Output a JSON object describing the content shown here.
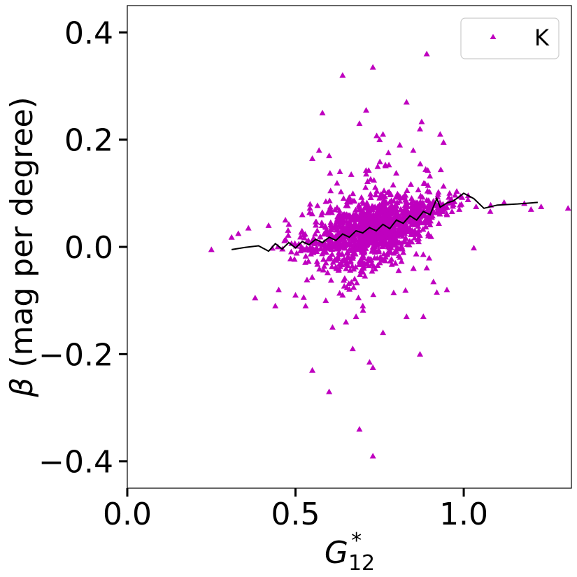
{
  "chart_data": {
    "type": "scatter",
    "xlabel": "G",
    "xlabel_sub": "12",
    "xlabel_sup": "*",
    "ylabel_symbol": "β",
    "ylabel": " (mag per degree)",
    "xlim": [
      0.0,
      1.32
    ],
    "ylim": [
      -0.45,
      0.45
    ],
    "x_ticks": [
      0.0,
      0.5,
      1.0
    ],
    "x_tick_labels": [
      "0.0",
      "0.5",
      "1.0"
    ],
    "y_ticks": [
      -0.4,
      -0.2,
      0.0,
      0.2,
      0.4
    ],
    "y_tick_labels": [
      "−0.4",
      "−0.2",
      "0.0",
      "0.2",
      "0.4"
    ],
    "grid": false,
    "legend": {
      "placement": "top-right",
      "entries": [
        {
          "label": "K",
          "marker": "triangle",
          "color": "#bf00bf"
        }
      ]
    },
    "series": [
      {
        "name": "K",
        "kind": "scatter",
        "marker": "triangle",
        "color": "#bf00bf",
        "generated_count": 1500,
        "points": [
          [
            0.25,
            -0.005
          ],
          [
            0.89,
            0.36
          ],
          [
            0.64,
            0.32
          ],
          [
            0.73,
            0.335
          ],
          [
            0.71,
            0.255
          ],
          [
            0.83,
            0.27
          ],
          [
            0.58,
            0.25
          ],
          [
            0.69,
            0.23
          ],
          [
            0.76,
            0.21
          ],
          [
            0.87,
            0.22
          ],
          [
            0.55,
            0.165
          ],
          [
            0.57,
            0.18
          ],
          [
            0.6,
            0.17
          ],
          [
            0.94,
            0.195
          ],
          [
            0.93,
            0.21
          ],
          [
            0.75,
            0.2
          ],
          [
            0.81,
            0.19
          ],
          [
            0.85,
            0.18
          ],
          [
            1.23,
            0.075
          ],
          [
            1.31,
            0.072
          ],
          [
            1.18,
            0.081
          ],
          [
            1.12,
            0.083
          ],
          [
            1.08,
            0.078
          ],
          [
            1.2,
            0.07
          ],
          [
            1.03,
            -0.002
          ],
          [
            0.95,
            -0.08
          ],
          [
            0.91,
            -0.065
          ],
          [
            0.92,
            -0.085
          ],
          [
            0.87,
            -0.2
          ],
          [
            0.83,
            -0.13
          ],
          [
            0.88,
            -0.13
          ],
          [
            0.67,
            -0.19
          ],
          [
            0.72,
            -0.215
          ],
          [
            0.73,
            -0.225
          ],
          [
            0.55,
            -0.23
          ],
          [
            0.6,
            -0.27
          ],
          [
            0.69,
            -0.34
          ],
          [
            0.73,
            -0.39
          ],
          [
            0.76,
            -0.16
          ],
          [
            0.68,
            -0.13
          ],
          [
            0.7,
            -0.11
          ],
          [
            0.64,
            -0.09
          ],
          [
            0.59,
            -0.1
          ],
          [
            0.53,
            -0.11
          ],
          [
            0.61,
            -0.15
          ],
          [
            0.65,
            -0.14
          ],
          [
            0.44,
            -0.11
          ],
          [
            0.38,
            -0.095
          ],
          [
            0.45,
            -0.08
          ],
          [
            0.5,
            -0.09
          ],
          [
            0.42,
            0.04
          ],
          [
            0.36,
            0.035
          ],
          [
            0.33,
            0.025
          ],
          [
            0.31,
            0.018
          ],
          [
            0.47,
            0.05
          ],
          [
            0.48,
            0.042
          ],
          [
            0.52,
            0.06
          ]
        ]
      },
      {
        "name": "",
        "kind": "line",
        "color": "#000000",
        "points": [
          [
            0.31,
            -0.005
          ],
          [
            0.35,
            -0.001
          ],
          [
            0.39,
            0.002
          ],
          [
            0.42,
            -0.008
          ],
          [
            0.44,
            0.006
          ],
          [
            0.46,
            -0.004
          ],
          [
            0.48,
            0.008
          ],
          [
            0.5,
            -0.002
          ],
          [
            0.52,
            0.01
          ],
          [
            0.54,
            0.004
          ],
          [
            0.56,
            0.014
          ],
          [
            0.58,
            0.008
          ],
          [
            0.6,
            0.018
          ],
          [
            0.62,
            0.012
          ],
          [
            0.64,
            0.024
          ],
          [
            0.66,
            0.018
          ],
          [
            0.68,
            0.03
          ],
          [
            0.7,
            0.026
          ],
          [
            0.72,
            0.036
          ],
          [
            0.74,
            0.03
          ],
          [
            0.76,
            0.042
          ],
          [
            0.78,
            0.034
          ],
          [
            0.8,
            0.05
          ],
          [
            0.82,
            0.044
          ],
          [
            0.84,
            0.058
          ],
          [
            0.86,
            0.05
          ],
          [
            0.88,
            0.066
          ],
          [
            0.9,
            0.06
          ],
          [
            0.92,
            0.09
          ],
          [
            0.93,
            0.074
          ],
          [
            0.95,
            0.082
          ],
          [
            0.97,
            0.086
          ],
          [
            1.0,
            0.1
          ],
          [
            1.03,
            0.09
          ],
          [
            1.06,
            0.072
          ],
          [
            1.1,
            0.078
          ],
          [
            1.16,
            0.08
          ],
          [
            1.22,
            0.083
          ]
        ]
      }
    ]
  }
}
